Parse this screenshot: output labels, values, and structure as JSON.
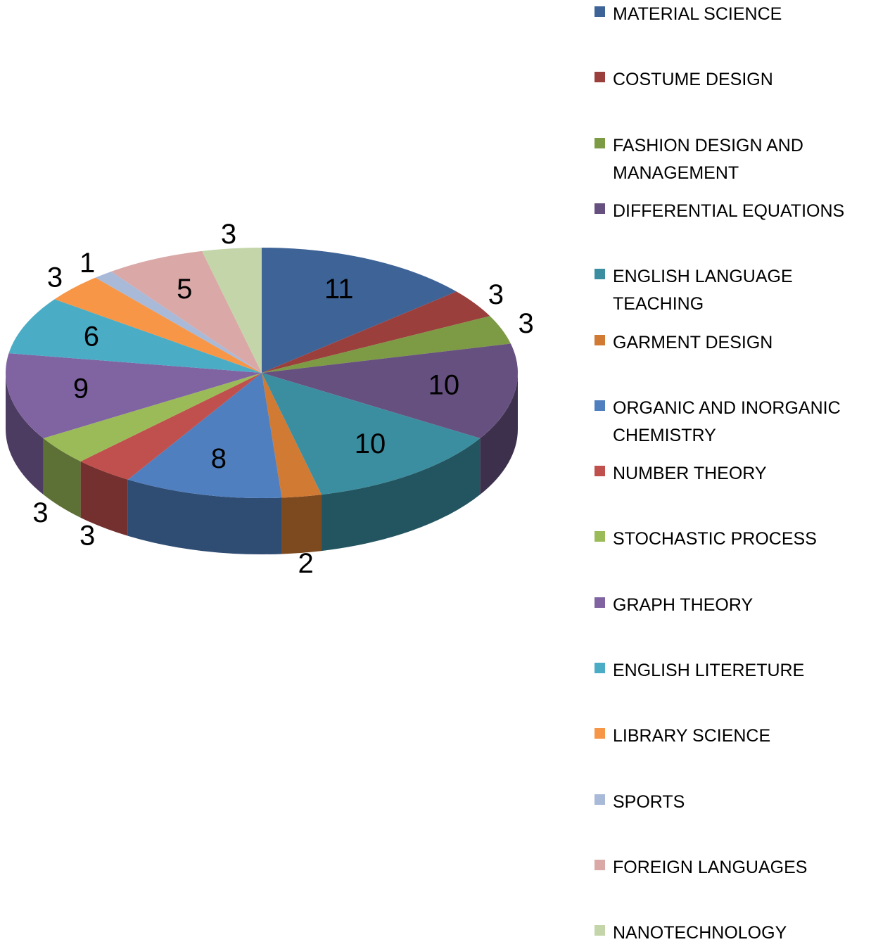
{
  "chart_data": {
    "type": "pie",
    "categories": [
      "MATERIAL SCIENCE",
      "COSTUME DESIGN",
      "FASHION DESIGN AND MANAGEMENT",
      "DIFFERENTIAL EQUATIONS",
      "ENGLISH LANGUAGE TEACHING",
      "GARMENT DESIGN",
      "ORGANIC AND INORGANIC CHEMISTRY",
      "NUMBER THEORY",
      "STOCHASTIC PROCESS",
      "GRAPH THEORY",
      "ENGLISH LITERETURE",
      "LIBRARY SCIENCE",
      "SPORTS",
      "FOREIGN LANGUAGES",
      "NANOTECHNOLOGY"
    ],
    "values": [
      11,
      3,
      3,
      10,
      10,
      2,
      8,
      3,
      3,
      9,
      6,
      3,
      1,
      5,
      3
    ],
    "colors": [
      "#3e6497",
      "#9b3f3d",
      "#7d9a45",
      "#66507f",
      "#3b8ea0",
      "#d07a34",
      "#4f7fbf",
      "#c0504d",
      "#9bbb59",
      "#8064a2",
      "#4bacc6",
      "#f79646",
      "#a9b9d8",
      "#d9a8a7",
      "#c3d5a9"
    ],
    "legend": "right"
  }
}
